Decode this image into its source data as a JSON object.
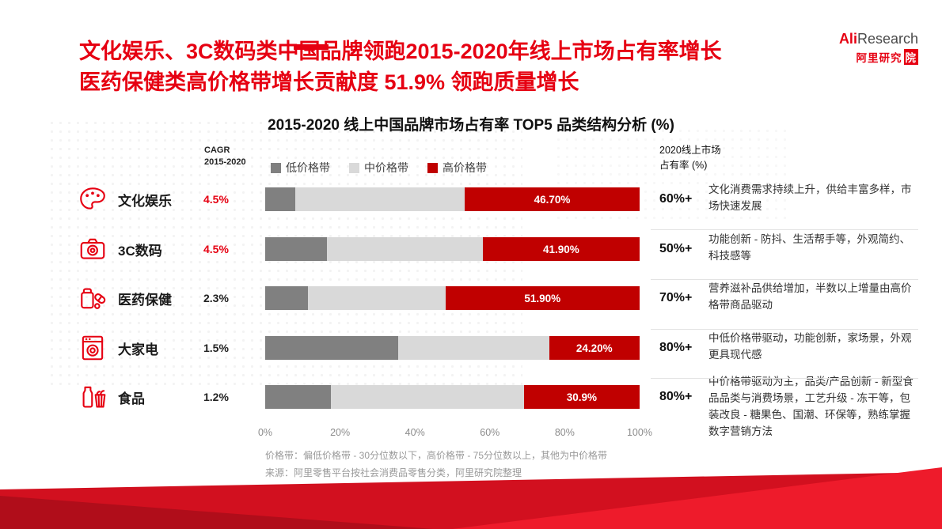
{
  "page": {
    "accent_red": "#e60012",
    "bar_red": "#c00000",
    "bar_dark_gray": "#808080",
    "bar_light_gray": "#d9d9d9"
  },
  "header": {
    "title_line1": "文化娱乐、3C数码类中国品牌领跑2015-2020年线上市场占有率增长",
    "title_line2": "医药保健类高价格带增长贡献度 51.9% 领跑质量增长",
    "logo_ali": "Ali",
    "logo_research": "Research",
    "logo_cn": "阿里研究",
    "logo_cn_box": "院"
  },
  "chart": {
    "title": "2015-2020 线上中国品牌市场占有率 TOP5 品类结构分析 (%)",
    "cagr_header_line1": "CAGR",
    "cagr_header_line2": "2015-2020",
    "right_header_line1": "2020线上市场",
    "right_header_line2": "占有率 (%)",
    "legend": [
      {
        "label": "低价格带",
        "color": "#808080"
      },
      {
        "label": "中价格带",
        "color": "#d9d9d9"
      },
      {
        "label": "高价格带",
        "color": "#c00000"
      }
    ],
    "x_ticks": [
      "0%",
      "20%",
      "40%",
      "60%",
      "80%",
      "100%"
    ],
    "rows": [
      {
        "category": "文化娱乐",
        "icon": "palette-icon",
        "cagr": "4.5%",
        "cagr_highlight": true,
        "low": 8.0,
        "mid": 45.3,
        "high": 46.7,
        "high_label": "46.70%",
        "share": "60%+",
        "note": "文化消费需求持续上升，供给丰富多样，市场快速发展"
      },
      {
        "category": "3C数码",
        "icon": "camera-icon",
        "cagr": "4.5%",
        "cagr_highlight": true,
        "low": 16.5,
        "mid": 41.6,
        "high": 41.9,
        "high_label": "41.90%",
        "share": "50%+",
        "note": "功能创新 - 防抖、生活帮手等，外观简约、科技感等"
      },
      {
        "category": "医药保健",
        "icon": "pills-icon",
        "cagr": "2.3%",
        "cagr_highlight": false,
        "low": 11.5,
        "mid": 36.6,
        "high": 51.9,
        "high_label": "51.90%",
        "share": "70%+",
        "note": "营养滋补品供给增加，半数以上增量由高价格带商品驱动"
      },
      {
        "category": "大家电",
        "icon": "appliance-icon",
        "cagr": "1.5%",
        "cagr_highlight": false,
        "low": 35.5,
        "mid": 40.3,
        "high": 24.2,
        "high_label": "24.20%",
        "share": "80%+",
        "note": "中低价格带驱动，功能创新，家场景，外观更具现代感"
      },
      {
        "category": "食品",
        "icon": "food-icon",
        "cagr": "1.2%",
        "cagr_highlight": false,
        "low": 17.5,
        "mid": 51.6,
        "high": 30.9,
        "high_label": "30.9%",
        "share": "80%+",
        "note": "中价格带驱动为主，品类/产品创新 - 新型食品品类与消费场景，工艺升级 - 冻干等，包装改良 - 糖果色、国潮、环保等，熟练掌握数字营销方法"
      }
    ]
  },
  "chart_data": {
    "type": "bar",
    "orientation": "horizontal",
    "stacked": true,
    "title": "2015-2020 线上中国品牌市场占有率 TOP5 品类结构分析 (%)",
    "categories": [
      "文化娱乐",
      "3C数码",
      "医药保健",
      "大家电",
      "食品"
    ],
    "series": [
      {
        "name": "低价格带",
        "color": "#808080",
        "values": [
          8.0,
          16.5,
          11.5,
          35.5,
          17.5
        ]
      },
      {
        "name": "中价格带",
        "color": "#d9d9d9",
        "values": [
          45.3,
          41.6,
          36.6,
          40.3,
          51.6
        ]
      },
      {
        "name": "高价格带",
        "color": "#c00000",
        "values": [
          46.7,
          41.9,
          51.9,
          24.2,
          30.9
        ]
      }
    ],
    "high_band_value_labels": [
      "46.70%",
      "41.90%",
      "51.90%",
      "24.20%",
      "30.9%"
    ],
    "cagr_2015_2020": [
      "4.5%",
      "4.5%",
      "2.3%",
      "1.5%",
      "1.2%"
    ],
    "share_2020": [
      "60%+",
      "50%+",
      "70%+",
      "80%+",
      "80%+"
    ],
    "xlim": [
      0,
      100
    ],
    "x_tick_labels": [
      "0%",
      "20%",
      "40%",
      "60%",
      "80%",
      "100%"
    ],
    "legend_position": "top",
    "grid": false
  },
  "footnotes": {
    "line1": "价格带：偏低价格带 - 30分位数以下，高价格带 - 75分位数以上，其他为中价格带",
    "line2": "来源：阿里零售平台按社会消费品零售分类，阿里研究院整理"
  }
}
